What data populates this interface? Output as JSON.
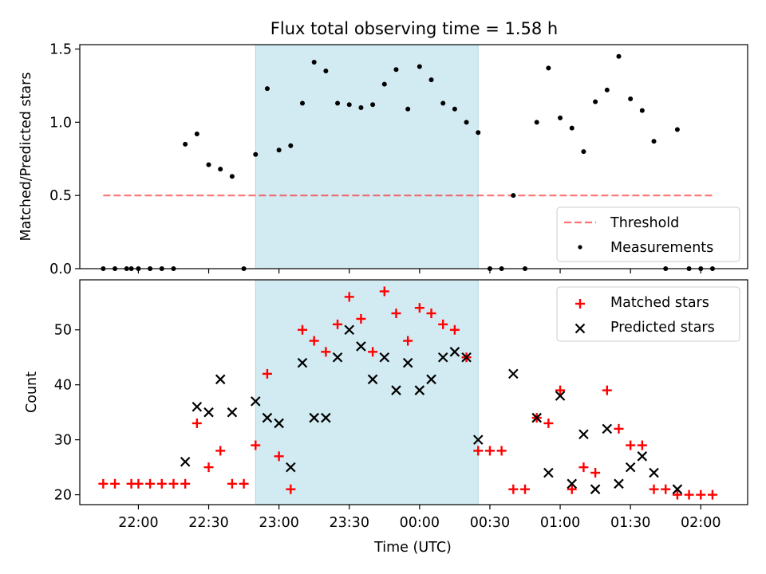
{
  "title": "Flux total observing time = 1.58 h",
  "colors": {
    "shade": "#add8e6",
    "threshold": "#ff0000",
    "measurement": "#000000",
    "matched": "#ff0000",
    "predicted": "#000000"
  },
  "chart_data": [
    {
      "type": "scatter",
      "name": "ratio-panel",
      "ylabel": "Matched/Predicted stars",
      "ylim": [
        0,
        1.53
      ],
      "yticks": [
        "0.0",
        "0.5",
        "1.0",
        "1.5"
      ],
      "ytick_values": [
        0,
        0.5,
        1.0,
        1.5
      ],
      "shaded_interval": [
        "22:50",
        "00:25"
      ],
      "legend": {
        "position": "lower-right",
        "entries": [
          "Threshold",
          "Measurements"
        ]
      },
      "threshold": {
        "name": "Threshold",
        "value": 0.5,
        "x_start": "21:45",
        "x_end": "02:05"
      },
      "series": [
        {
          "name": "Measurements",
          "x": [
            "21:45",
            "21:50",
            "21:55",
            "21:57",
            "22:00",
            "22:05",
            "22:10",
            "22:15",
            "22:20",
            "22:25",
            "22:30",
            "22:35",
            "22:40",
            "22:45",
            "22:50",
            "22:55",
            "23:00",
            "23:05",
            "23:10",
            "23:15",
            "23:20",
            "23:25",
            "23:30",
            "23:35",
            "23:40",
            "23:45",
            "23:50",
            "23:55",
            "00:00",
            "00:05",
            "00:10",
            "00:15",
            "00:20",
            "00:25",
            "00:30",
            "00:35",
            "00:40",
            "00:45",
            "00:50",
            "00:55",
            "01:00",
            "01:05",
            "01:10",
            "01:15",
            "01:20",
            "01:25",
            "01:30",
            "01:35",
            "01:40",
            "01:45",
            "01:50",
            "01:55",
            "02:00",
            "02:05"
          ],
          "y": [
            0,
            0,
            0,
            0,
            0,
            0,
            0,
            0,
            0.85,
            0.92,
            0.71,
            0.68,
            0.63,
            0,
            0.78,
            1.23,
            0.81,
            0.84,
            1.13,
            1.41,
            1.35,
            1.13,
            1.12,
            1.1,
            1.12,
            1.26,
            1.36,
            1.09,
            1.38,
            1.29,
            1.13,
            1.09,
            1.0,
            0.93,
            0,
            0,
            0.5,
            0,
            1.0,
            1.37,
            1.03,
            0.96,
            0.8,
            1.14,
            1.22,
            1.45,
            1.16,
            1.08,
            0.87,
            0,
            0.95,
            0,
            0,
            0
          ]
        }
      ]
    },
    {
      "type": "scatter",
      "name": "count-panel",
      "xlabel": "Time (UTC)",
      "ylabel": "Count",
      "ylim": [
        18.2,
        59.1
      ],
      "yticks": [
        "20",
        "30",
        "40",
        "50"
      ],
      "ytick_values": [
        20,
        30,
        40,
        50
      ],
      "xlim": [
        "21:35",
        "02:20"
      ],
      "xticks": [
        "22:00",
        "22:30",
        "23:00",
        "23:30",
        "00:00",
        "00:30",
        "01:00",
        "01:30",
        "02:00"
      ],
      "shaded_interval": [
        "22:50",
        "00:25"
      ],
      "legend": {
        "position": "top-right",
        "entries": [
          "Matched stars",
          "Predicted stars"
        ]
      },
      "series": [
        {
          "name": "Matched stars",
          "marker": "+",
          "x": [
            "21:45",
            "21:50",
            "21:57",
            "22:00",
            "22:05",
            "22:10",
            "22:15",
            "22:20",
            "22:25",
            "22:30",
            "22:35",
            "22:40",
            "22:45",
            "22:50",
            "22:55",
            "23:00",
            "23:05",
            "23:10",
            "23:15",
            "23:20",
            "23:25",
            "23:30",
            "23:35",
            "23:40",
            "23:45",
            "23:50",
            "23:55",
            "00:00",
            "00:05",
            "00:10",
            "00:15",
            "00:20",
            "00:25",
            "00:30",
            "00:35",
            "00:40",
            "00:45",
            "00:50",
            "00:55",
            "01:00",
            "01:05",
            "01:10",
            "01:15",
            "01:20",
            "01:25",
            "01:30",
            "01:35",
            "01:40",
            "01:45",
            "01:50",
            "01:55",
            "02:00",
            "02:05"
          ],
          "y": [
            22,
            22,
            22,
            22,
            22,
            22,
            22,
            22,
            33,
            25,
            28,
            22,
            22,
            29,
            42,
            27,
            21,
            50,
            48,
            46,
            51,
            56,
            52,
            46,
            57,
            53,
            48,
            54,
            53,
            51,
            50,
            45,
            28,
            28,
            28,
            21,
            21,
            34,
            33,
            39,
            21,
            25,
            24,
            39,
            32,
            29,
            29,
            21,
            21,
            20,
            20,
            20,
            20
          ]
        },
        {
          "name": "Predicted stars",
          "marker": "x",
          "x": [
            "22:20",
            "22:25",
            "22:30",
            "22:35",
            "22:40",
            "22:50",
            "22:55",
            "23:00",
            "23:05",
            "23:10",
            "23:15",
            "23:20",
            "23:25",
            "23:30",
            "23:35",
            "23:40",
            "23:45",
            "23:50",
            "23:55",
            "00:00",
            "00:05",
            "00:10",
            "00:15",
            "00:20",
            "00:25",
            "00:40",
            "00:50",
            "00:55",
            "01:00",
            "01:05",
            "01:10",
            "01:15",
            "01:20",
            "01:25",
            "01:30",
            "01:35",
            "01:40",
            "01:50"
          ],
          "y": [
            26,
            36,
            35,
            41,
            35,
            37,
            34,
            33,
            25,
            44,
            34,
            34,
            45,
            50,
            47,
            41,
            45,
            39,
            44,
            39,
            41,
            45,
            46,
            45,
            30,
            42,
            34,
            24,
            38,
            22,
            31,
            21,
            32,
            22,
            25,
            27,
            24,
            21
          ]
        }
      ]
    }
  ]
}
